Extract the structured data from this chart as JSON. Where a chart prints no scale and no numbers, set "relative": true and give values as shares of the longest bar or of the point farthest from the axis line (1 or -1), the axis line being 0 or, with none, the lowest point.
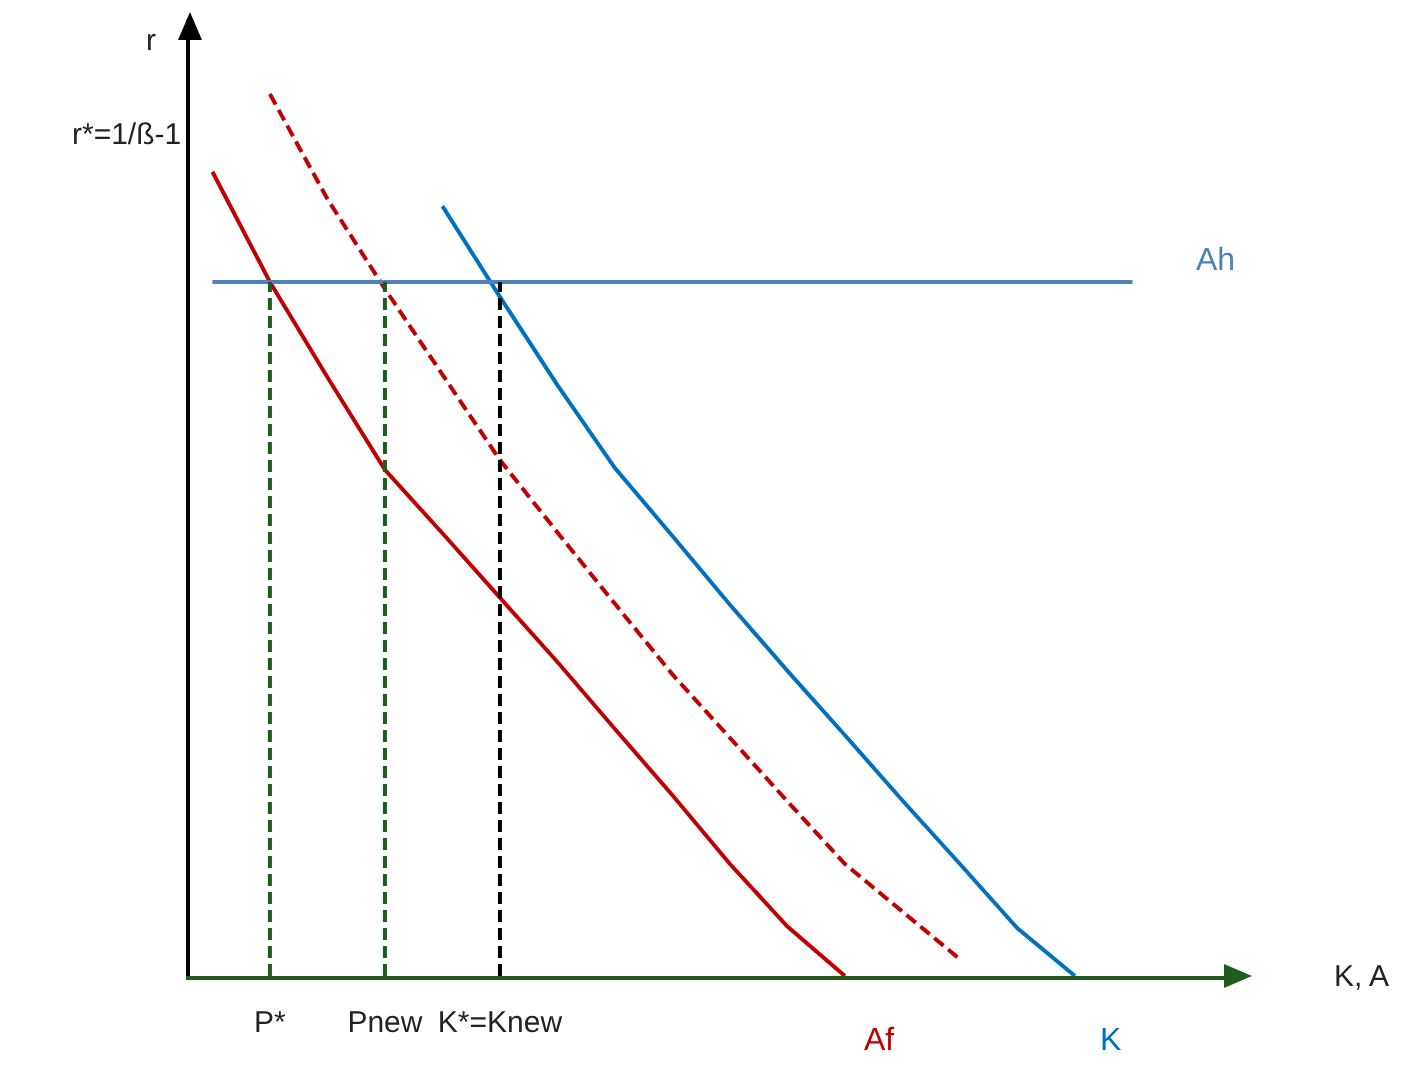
{
  "chart_data": {
    "type": "line",
    "relative": true,
    "xlabel": "K, A",
    "ylabel": "r",
    "grid": false,
    "legend": false,
    "marker": "none",
    "categories": [
      null,
      "P*",
      null,
      "Pnew",
      null,
      "K*=Knew",
      null,
      null,
      null,
      null,
      null,
      null,
      null,
      null,
      null,
      null,
      null,
      null
    ],
    "annotations": [
      "r*=1/ß-1"
    ],
    "ref_lines": [
      {
        "axis": "x",
        "value": "P*",
        "color": "#1e5c1e",
        "line_style": "dashed"
      },
      {
        "axis": "x",
        "value": "Pnew",
        "color": "#1e5c1e",
        "line_style": "dashed"
      },
      {
        "axis": "x",
        "value": "K*=Knew",
        "color": "#000000",
        "line_style": "dashed"
      }
    ],
    "series": [
      {
        "name": "Af",
        "color": "#c00000",
        "line_style": "solid",
        "values": [
          0.912,
          0.787,
          0.679,
          0.574,
          0.502,
          0.429,
          0.356,
          0.28,
          0.205,
          0.127,
          0.056,
          0,
          null,
          null,
          null,
          null,
          null,
          null
        ]
      },
      {
        "color": "#c00000",
        "line_style": "dashed",
        "values": [
          null,
          1,
          0.881,
          0.779,
          0.682,
          0.585,
          0.503,
          0.422,
          0.342,
          0.27,
          0.198,
          0.127,
          0.073,
          0.019,
          null,
          null,
          null,
          null
        ]
      },
      {
        "name": "K",
        "color": "#0070c0",
        "line_style": "solid",
        "values": [
          null,
          null,
          null,
          null,
          0.873,
          0.77,
          0.67,
          0.576,
          0.499,
          0.421,
          0.346,
          0.273,
          0.199,
          0.127,
          0.054,
          0,
          null,
          null
        ]
      },
      {
        "name": "Ah",
        "color": "#4f81bd",
        "line_style": "solid",
        "values": [
          0.787,
          0.787,
          0.787,
          0.787,
          0.787,
          0.787,
          0.787,
          0.787,
          0.787,
          0.787,
          0.787,
          0.787,
          0.787,
          0.787,
          0.787,
          0.787,
          0.787,
          null
        ]
      }
    ]
  }
}
